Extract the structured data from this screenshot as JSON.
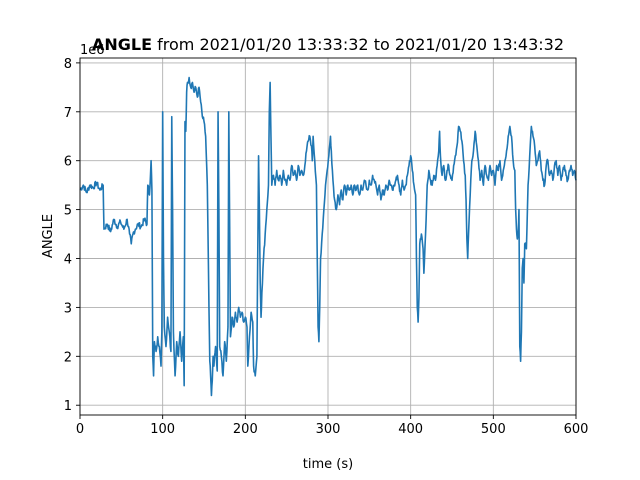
{
  "chart_data": {
    "type": "line",
    "title_bold": "ANGLE",
    "title_rest": " from 2021/01/20 13:33:32 to 2021/01/20 13:43:32",
    "xlabel": "time (s)",
    "ylabel": "ANGLE",
    "y_offset_label": "1e6",
    "xlim": [
      0,
      600
    ],
    "ylim": [
      0.8,
      8.1
    ],
    "xticks": [
      0,
      100,
      200,
      300,
      400,
      500,
      600
    ],
    "yticks": [
      1,
      2,
      3,
      4,
      5,
      6,
      7,
      8
    ],
    "grid": true,
    "color": "#1f77b4",
    "series": [
      {
        "points": [
          [
            0,
            5.4
          ],
          [
            4,
            5.5
          ],
          [
            8,
            5.35
          ],
          [
            12,
            5.5
          ],
          [
            16,
            5.45
          ],
          [
            20,
            5.55
          ],
          [
            24,
            5.4
          ],
          [
            28,
            5.5
          ],
          [
            29,
            4.6
          ],
          [
            33,
            4.7
          ],
          [
            37,
            4.55
          ],
          [
            41,
            4.8
          ],
          [
            45,
            4.65
          ],
          [
            49,
            4.75
          ],
          [
            53,
            4.6
          ],
          [
            57,
            4.8
          ],
          [
            60,
            4.5
          ],
          [
            62,
            4.3
          ],
          [
            64,
            4.5
          ],
          [
            67,
            4.6
          ],
          [
            70,
            4.7
          ],
          [
            74,
            4.65
          ],
          [
            78,
            4.8
          ],
          [
            81,
            4.7
          ],
          [
            82,
            5.5
          ],
          [
            84,
            5.3
          ],
          [
            86,
            6.0
          ],
          [
            87,
            5.4
          ],
          [
            88,
            2.0
          ],
          [
            89,
            1.6
          ],
          [
            90,
            2.3
          ],
          [
            92,
            2.1
          ],
          [
            94,
            2.4
          ],
          [
            96,
            2.2
          ],
          [
            98,
            1.8
          ],
          [
            99,
            2.5
          ],
          [
            100,
            7.0
          ],
          [
            101,
            4.0
          ],
          [
            102,
            2.6
          ],
          [
            104,
            2.2
          ],
          [
            106,
            2.8
          ],
          [
            108,
            2.5
          ],
          [
            110,
            2.1
          ],
          [
            111,
            6.9
          ],
          [
            112,
            5.0
          ],
          [
            113,
            2.5
          ],
          [
            115,
            1.6
          ],
          [
            117,
            2.3
          ],
          [
            119,
            2.0
          ],
          [
            121,
            2.5
          ],
          [
            123,
            1.9
          ],
          [
            125,
            2.4
          ],
          [
            126,
            1.4
          ],
          [
            127,
            6.8
          ],
          [
            128,
            6.6
          ],
          [
            129,
            7.4
          ],
          [
            130,
            7.6
          ],
          [
            132,
            7.7
          ],
          [
            134,
            7.5
          ],
          [
            136,
            7.6
          ],
          [
            138,
            7.4
          ],
          [
            140,
            7.5
          ],
          [
            142,
            7.3
          ],
          [
            144,
            7.5
          ],
          [
            146,
            7.2
          ],
          [
            148,
            6.9
          ],
          [
            150,
            6.8
          ],
          [
            152,
            6.5
          ],
          [
            154,
            5.5
          ],
          [
            156,
            3.0
          ],
          [
            157,
            1.9
          ],
          [
            158,
            1.6
          ],
          [
            159,
            1.2
          ],
          [
            160,
            1.5
          ],
          [
            161,
            2.0
          ],
          [
            162,
            1.8
          ],
          [
            164,
            2.2
          ],
          [
            166,
            1.7
          ],
          [
            167,
            7.0
          ],
          [
            168,
            5.0
          ],
          [
            169,
            2.2
          ],
          [
            171,
            2.0
          ],
          [
            173,
            1.6
          ],
          [
            175,
            2.3
          ],
          [
            177,
            1.9
          ],
          [
            179,
            2.6
          ],
          [
            180,
            7.0
          ],
          [
            181,
            4.8
          ],
          [
            182,
            2.4
          ],
          [
            184,
            2.8
          ],
          [
            186,
            2.6
          ],
          [
            188,
            2.9
          ],
          [
            190,
            2.7
          ],
          [
            192,
            3.0
          ],
          [
            194,
            2.8
          ],
          [
            196,
            2.9
          ],
          [
            198,
            2.7
          ],
          [
            200,
            2.8
          ],
          [
            202,
            2.6
          ],
          [
            203,
            1.8
          ],
          [
            205,
            2.4
          ],
          [
            207,
            2.9
          ],
          [
            209,
            2.7
          ],
          [
            210,
            1.8
          ],
          [
            212,
            1.6
          ],
          [
            214,
            2.0
          ],
          [
            216,
            6.1
          ],
          [
            217,
            5.0
          ],
          [
            218,
            3.5
          ],
          [
            219,
            2.8
          ],
          [
            220,
            3.3
          ],
          [
            222,
            4.0
          ],
          [
            224,
            4.5
          ],
          [
            226,
            5.0
          ],
          [
            228,
            5.5
          ],
          [
            229,
            7.0
          ],
          [
            230,
            7.6
          ],
          [
            231,
            6.5
          ],
          [
            232,
            5.5
          ],
          [
            234,
            5.7
          ],
          [
            236,
            5.5
          ],
          [
            238,
            5.8
          ],
          [
            240,
            5.6
          ],
          [
            242,
            5.7
          ],
          [
            244,
            5.5
          ],
          [
            246,
            5.8
          ],
          [
            248,
            5.6
          ],
          [
            250,
            5.5
          ],
          [
            252,
            5.7
          ],
          [
            254,
            5.6
          ],
          [
            256,
            5.9
          ],
          [
            258,
            5.7
          ],
          [
            260,
            5.8
          ],
          [
            262,
            5.6
          ],
          [
            264,
            5.9
          ],
          [
            266,
            5.7
          ],
          [
            268,
            5.8
          ],
          [
            270,
            5.7
          ],
          [
            272,
            5.9
          ],
          [
            274,
            6.2
          ],
          [
            276,
            6.4
          ],
          [
            278,
            6.5
          ],
          [
            280,
            6.3
          ],
          [
            281,
            6.0
          ],
          [
            282,
            6.5
          ],
          [
            284,
            6.0
          ],
          [
            286,
            5.5
          ],
          [
            287,
            4.0
          ],
          [
            288,
            2.6
          ],
          [
            289,
            2.3
          ],
          [
            290,
            3.0
          ],
          [
            291,
            4.0
          ],
          [
            293,
            4.5
          ],
          [
            295,
            5.0
          ],
          [
            297,
            5.5
          ],
          [
            299,
            5.8
          ],
          [
            301,
            6.1
          ],
          [
            303,
            6.5
          ],
          [
            304,
            6.2
          ],
          [
            306,
            5.6
          ],
          [
            308,
            5.2
          ],
          [
            310,
            5.0
          ],
          [
            312,
            5.3
          ],
          [
            314,
            5.1
          ],
          [
            316,
            5.4
          ],
          [
            318,
            5.2
          ],
          [
            320,
            5.5
          ],
          [
            322,
            5.3
          ],
          [
            324,
            5.5
          ],
          [
            326,
            5.4
          ],
          [
            328,
            5.5
          ],
          [
            330,
            5.3
          ],
          [
            332,
            5.5
          ],
          [
            334,
            5.4
          ],
          [
            336,
            5.5
          ],
          [
            338,
            5.3
          ],
          [
            340,
            5.5
          ],
          [
            342,
            5.4
          ],
          [
            344,
            5.6
          ],
          [
            346,
            5.5
          ],
          [
            348,
            5.4
          ],
          [
            350,
            5.6
          ],
          [
            352,
            5.5
          ],
          [
            354,
            5.7
          ],
          [
            356,
            5.6
          ],
          [
            358,
            5.5
          ],
          [
            360,
            5.3
          ],
          [
            362,
            5.5
          ],
          [
            364,
            5.2
          ],
          [
            366,
            5.4
          ],
          [
            368,
            5.3
          ],
          [
            370,
            5.5
          ],
          [
            372,
            5.4
          ],
          [
            374,
            5.6
          ],
          [
            376,
            5.5
          ],
          [
            378,
            5.4
          ],
          [
            380,
            5.5
          ],
          [
            382,
            5.6
          ],
          [
            384,
            5.7
          ],
          [
            386,
            5.5
          ],
          [
            388,
            5.3
          ],
          [
            390,
            5.6
          ],
          [
            392,
            5.4
          ],
          [
            394,
            5.5
          ],
          [
            396,
            5.7
          ],
          [
            398,
            5.9
          ],
          [
            400,
            6.1
          ],
          [
            402,
            5.8
          ],
          [
            404,
            5.5
          ],
          [
            406,
            5.3
          ],
          [
            407,
            4.0
          ],
          [
            408,
            3.0
          ],
          [
            409,
            2.7
          ],
          [
            410,
            3.2
          ],
          [
            411,
            4.3
          ],
          [
            413,
            4.5
          ],
          [
            415,
            4.2
          ],
          [
            416,
            3.7
          ],
          [
            418,
            4.5
          ],
          [
            420,
            5.5
          ],
          [
            422,
            5.8
          ],
          [
            424,
            5.6
          ],
          [
            426,
            5.5
          ],
          [
            428,
            5.7
          ],
          [
            430,
            5.6
          ],
          [
            432,
            5.9
          ],
          [
            434,
            6.2
          ],
          [
            435,
            6.6
          ],
          [
            436,
            6.1
          ],
          [
            438,
            5.7
          ],
          [
            440,
            5.9
          ],
          [
            442,
            5.6
          ],
          [
            444,
            5.8
          ],
          [
            446,
            5.9
          ],
          [
            448,
            5.7
          ],
          [
            450,
            5.6
          ],
          [
            452,
            5.9
          ],
          [
            454,
            6.1
          ],
          [
            456,
            6.3
          ],
          [
            458,
            6.7
          ],
          [
            460,
            6.6
          ],
          [
            462,
            6.4
          ],
          [
            464,
            6.0
          ],
          [
            466,
            5.7
          ],
          [
            467,
            5.2
          ],
          [
            468,
            4.4
          ],
          [
            469,
            4.0
          ],
          [
            470,
            4.5
          ],
          [
            472,
            5.3
          ],
          [
            474,
            6.0
          ],
          [
            476,
            6.2
          ],
          [
            478,
            6.6
          ],
          [
            480,
            6.3
          ],
          [
            482,
            6.0
          ],
          [
            484,
            5.6
          ],
          [
            486,
            5.8
          ],
          [
            488,
            5.5
          ],
          [
            490,
            5.9
          ],
          [
            492,
            5.7
          ],
          [
            494,
            5.6
          ],
          [
            496,
            5.9
          ],
          [
            498,
            5.7
          ],
          [
            500,
            5.8
          ],
          [
            502,
            5.5
          ],
          [
            504,
            5.9
          ],
          [
            506,
            5.8
          ],
          [
            508,
            6.0
          ],
          [
            510,
            5.6
          ],
          [
            512,
            5.8
          ],
          [
            514,
            6.0
          ],
          [
            516,
            6.2
          ],
          [
            518,
            6.5
          ],
          [
            520,
            6.7
          ],
          [
            522,
            6.5
          ],
          [
            524,
            6.0
          ],
          [
            526,
            5.8
          ],
          [
            527,
            5.0
          ],
          [
            528,
            4.6
          ],
          [
            529,
            4.4
          ],
          [
            530,
            4.5
          ],
          [
            531,
            5.0
          ],
          [
            532,
            2.2
          ],
          [
            533,
            1.9
          ],
          [
            534,
            2.5
          ],
          [
            535,
            3.8
          ],
          [
            536,
            4.0
          ],
          [
            537,
            3.5
          ],
          [
            538,
            4.3
          ],
          [
            540,
            4.2
          ],
          [
            542,
            5.5
          ],
          [
            544,
            6.1
          ],
          [
            546,
            6.7
          ],
          [
            548,
            6.5
          ],
          [
            550,
            6.3
          ],
          [
            552,
            5.9
          ],
          [
            554,
            6.0
          ],
          [
            556,
            6.2
          ],
          [
            558,
            5.8
          ],
          [
            560,
            5.6
          ],
          [
            562,
            5.5
          ],
          [
            564,
            5.9
          ],
          [
            566,
            6.0
          ],
          [
            568,
            5.7
          ],
          [
            570,
            5.8
          ],
          [
            572,
            5.6
          ],
          [
            574,
            5.9
          ],
          [
            576,
            6.0
          ],
          [
            578,
            5.7
          ],
          [
            580,
            5.9
          ],
          [
            582,
            5.6
          ],
          [
            584,
            5.8
          ],
          [
            586,
            5.9
          ],
          [
            588,
            5.7
          ],
          [
            590,
            5.6
          ],
          [
            592,
            5.8
          ],
          [
            594,
            5.9
          ],
          [
            596,
            5.7
          ],
          [
            598,
            5.8
          ],
          [
            600,
            5.6
          ]
        ]
      }
    ]
  }
}
